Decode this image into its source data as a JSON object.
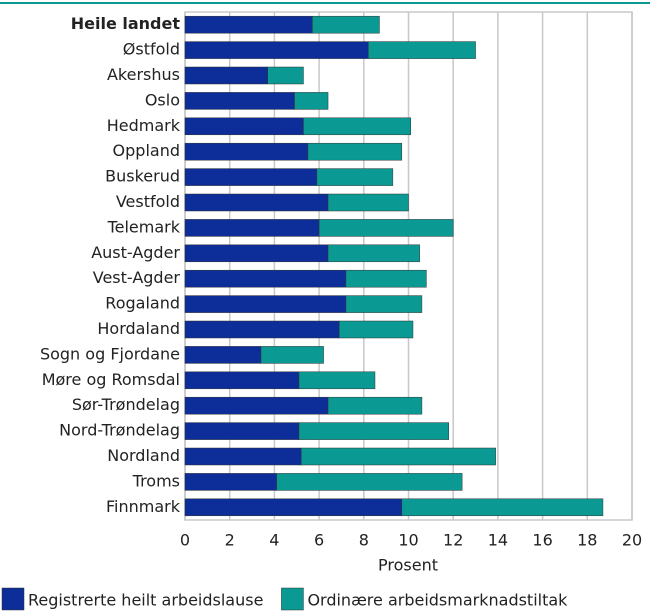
{
  "chart_data": {
    "type": "stacked-barh",
    "xlabel": "Prosent",
    "categories": [
      "Heile landet",
      "Østfold",
      "Akershus",
      "Oslo",
      "Hedmark",
      "Oppland",
      "Buskerud",
      "Vestfold",
      "Telemark",
      "Aust-Agder",
      "Vest-Agder",
      "Rogaland",
      "Hordaland",
      "Sogn og Fjordane",
      "Møre og Romsdal",
      "Sør-Trøndelag",
      "Nord-Trøndelag",
      "Nordland",
      "Troms",
      "Finnmark"
    ],
    "series": [
      {
        "name": "Registrerte heilt arbeidslause",
        "color": "#0d2d99",
        "values": [
          5.7,
          8.2,
          3.7,
          4.9,
          5.3,
          5.5,
          5.9,
          6.4,
          6.0,
          6.4,
          7.2,
          7.2,
          6.9,
          3.4,
          5.1,
          6.4,
          5.1,
          5.2,
          4.1,
          9.7
        ]
      },
      {
        "name": "Ordinære arbeidsmarknadstiltak",
        "color": "#0a9a93",
        "values": [
          3.0,
          4.8,
          1.6,
          1.5,
          4.8,
          4.2,
          3.4,
          3.6,
          6.0,
          4.1,
          3.6,
          3.4,
          3.3,
          2.8,
          3.4,
          4.2,
          6.7,
          8.7,
          8.3,
          9.0
        ]
      }
    ],
    "xlim": [
      0,
      20
    ],
    "xticks": [
      0,
      2,
      4,
      6,
      8,
      10,
      12,
      14,
      16,
      18,
      20
    ],
    "grid": true
  }
}
